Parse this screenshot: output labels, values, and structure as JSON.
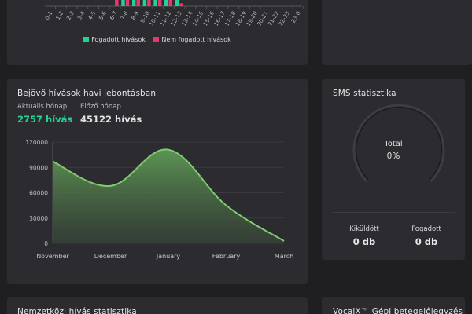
{
  "hourly": {
    "hours": [
      "0-1",
      "1-2",
      "2-3",
      "3-4",
      "4-5",
      "5-6",
      "6-7",
      "7-8",
      "8-9",
      "9-10",
      "10-11",
      "11-12",
      "12-13",
      "13-14",
      "14-15",
      "15-16",
      "16-17",
      "17-18",
      "18-19",
      "19-20",
      "20-21",
      "21-22",
      "22-23",
      "23-0"
    ],
    "legend": [
      {
        "label": "Fogadott hívások",
        "color": "#1fd397"
      },
      {
        "label": "Nem fogadott hívások",
        "color": "#e8366f"
      }
    ]
  },
  "monthly": {
    "title": "Bejövő hívások havi lebontásban",
    "current_label": "Aktuális hónap",
    "current_value": "2757 hívás",
    "previous_label": "Előző hónap",
    "previous_value": "45122 hívás"
  },
  "sms": {
    "title": "SMS statisztika",
    "total_label": "Total",
    "total_value": "0%",
    "sent_label": "Kiküldött",
    "sent_value": "0 db",
    "received_label": "Fogadott",
    "received_value": "0 db"
  },
  "bottom": {
    "international_title": "Nemzetközi hívás statisztika",
    "vocalx_title": "VocalX™ Gépi betegelőjegyzés"
  },
  "chart_data": [
    {
      "type": "bar",
      "categories": [
        "0-1",
        "1-2",
        "2-3",
        "3-4",
        "4-5",
        "5-6",
        "6-7",
        "7-8",
        "8-9",
        "9-10",
        "10-11",
        "11-12",
        "12-13",
        "13-14",
        "14-15",
        "15-16",
        "16-17",
        "17-18",
        "18-19",
        "19-20",
        "20-21",
        "21-22",
        "22-23",
        "23-0"
      ],
      "series": [
        {
          "name": "Fogadott hívások",
          "values": [
            0,
            0,
            0,
            0,
            0,
            0,
            0,
            1,
            1,
            1,
            1,
            1,
            1,
            0,
            0,
            0,
            0,
            0,
            0,
            0,
            0,
            0,
            0,
            0
          ]
        },
        {
          "name": "Nem fogadott hívások",
          "values": [
            0,
            0,
            0,
            0,
            0,
            0,
            1,
            1,
            1,
            1,
            1,
            1,
            0.2,
            0,
            0,
            0,
            0,
            0,
            0,
            0,
            0,
            0,
            0,
            0
          ]
        }
      ]
    },
    {
      "type": "area",
      "categories": [
        "November",
        "December",
        "January",
        "February",
        "March"
      ],
      "values": [
        97000,
        68000,
        111000,
        45000,
        2757
      ],
      "yticks": [
        0,
        30000,
        60000,
        90000,
        120000
      ],
      "ylim": [
        0,
        120000
      ],
      "color": "#7ecb6f"
    }
  ]
}
